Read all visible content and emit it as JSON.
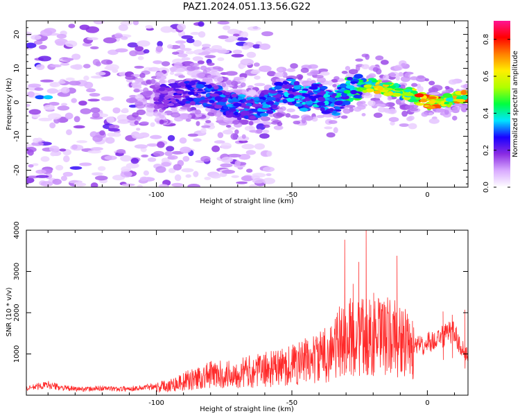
{
  "title": "PAZ1.2024.051.13.56.G22",
  "chart_data": [
    {
      "type": "heatmap",
      "xlabel": "Height of straight line (km)",
      "ylabel": "Frequency (Hz)",
      "xlim": [
        -148,
        15
      ],
      "ylim": [
        -25,
        24
      ],
      "xticks": [
        -100,
        -50,
        0
      ],
      "yticks": [
        -20,
        -10,
        0,
        10,
        20
      ],
      "ridge": [
        {
          "x": -145,
          "f": 2,
          "a": 0.22
        },
        {
          "x": -100,
          "f": 1,
          "a": 0.18
        },
        {
          "x": -95,
          "f": 2,
          "a": 0.25
        },
        {
          "x": -88,
          "f": 3,
          "a": 0.27
        },
        {
          "x": -80,
          "f": 2,
          "a": 0.3
        },
        {
          "x": -72,
          "f": -1,
          "a": 0.32
        },
        {
          "x": -65,
          "f": -2,
          "a": 0.32
        },
        {
          "x": -58,
          "f": 0,
          "a": 0.33
        },
        {
          "x": -52,
          "f": 4,
          "a": 0.33
        },
        {
          "x": -46,
          "f": 1,
          "a": 0.34
        },
        {
          "x": -40,
          "f": 2,
          "a": 0.36
        },
        {
          "x": -35,
          "f": -1,
          "a": 0.36
        },
        {
          "x": -30,
          "f": 3,
          "a": 0.42
        },
        {
          "x": -25,
          "f": 5,
          "a": 0.45
        },
        {
          "x": -20,
          "f": 5,
          "a": 0.6
        },
        {
          "x": -15,
          "f": 4,
          "a": 0.65
        },
        {
          "x": -10,
          "f": 3,
          "a": 0.55
        },
        {
          "x": -5,
          "f": 2,
          "a": 0.65
        },
        {
          "x": 0,
          "f": 0,
          "a": 0.9
        },
        {
          "x": 5,
          "f": 0,
          "a": 0.7
        },
        {
          "x": 10,
          "f": 1,
          "a": 0.65
        },
        {
          "x": 15,
          "f": 2,
          "a": 0.7
        }
      ],
      "colorbar": {
        "label": "Normalized spectral amplitude",
        "ticks": [
          0.0,
          0.2,
          0.4,
          0.6,
          0.8
        ],
        "range": [
          0.0,
          0.9
        ],
        "colors": [
          "#ffffff",
          "#d9aaff",
          "#8a2be2",
          "#1a00ff",
          "#00e5ff",
          "#00ff40",
          "#b0ff00",
          "#ffee00",
          "#ff8000",
          "#ff0000",
          "#ff1493"
        ]
      }
    },
    {
      "type": "line",
      "xlabel": "Height of straight line (km)",
      "ylabel": "SNR (10 * v/v)",
      "xlim": [
        -148,
        15
      ],
      "ylim": [
        0,
        4000
      ],
      "xticks": [
        -100,
        -50,
        0
      ],
      "yticks": [
        1000,
        2000,
        3000,
        4000
      ],
      "color": "#ff2a2a",
      "series": [
        {
          "x": [
            -148,
            -145,
            -140,
            -135,
            -130,
            -125,
            -120,
            -115,
            -110,
            -105,
            -100,
            -95,
            -90,
            -85,
            -80,
            -75,
            -70,
            -65,
            -60,
            -55,
            -50,
            -45,
            -40,
            -35,
            -32,
            -31,
            -30,
            -28,
            -25,
            -24,
            -23,
            -22,
            -20,
            -18,
            -15,
            -12,
            -11,
            -10,
            -8,
            -5,
            -2,
            0,
            3,
            5,
            8,
            10,
            12,
            15
          ],
          "values": [
            150,
            200,
            250,
            180,
            150,
            150,
            170,
            150,
            160,
            180,
            230,
            300,
            400,
            500,
            600,
            600,
            650,
            700,
            750,
            800,
            900,
            1000,
            1100,
            1300,
            1600,
            3800,
            1400,
            1800,
            3200,
            1500,
            4000,
            1800,
            2000,
            2300,
            2200,
            3400,
            1800,
            1600,
            1500,
            1200,
            1200,
            1300,
            1300,
            1400,
            1500,
            1500,
            1200,
            1000
          ],
          "spikes": [
            {
              "x": -30.5,
              "y": 3770
            },
            {
              "x": -27.4,
              "y": 2700
            },
            {
              "x": -25.3,
              "y": 3230
            },
            {
              "x": -22.6,
              "y": 4000
            },
            {
              "x": -19.8,
              "y": 2480
            },
            {
              "x": -11.2,
              "y": 3380
            },
            {
              "x": -5.5,
              "y": 1800
            },
            {
              "x": 5.8,
              "y": 2030
            },
            {
              "x": 9.2,
              "y": 1950
            },
            {
              "x": 13.8,
              "y": 2070
            }
          ]
        }
      ]
    }
  ]
}
